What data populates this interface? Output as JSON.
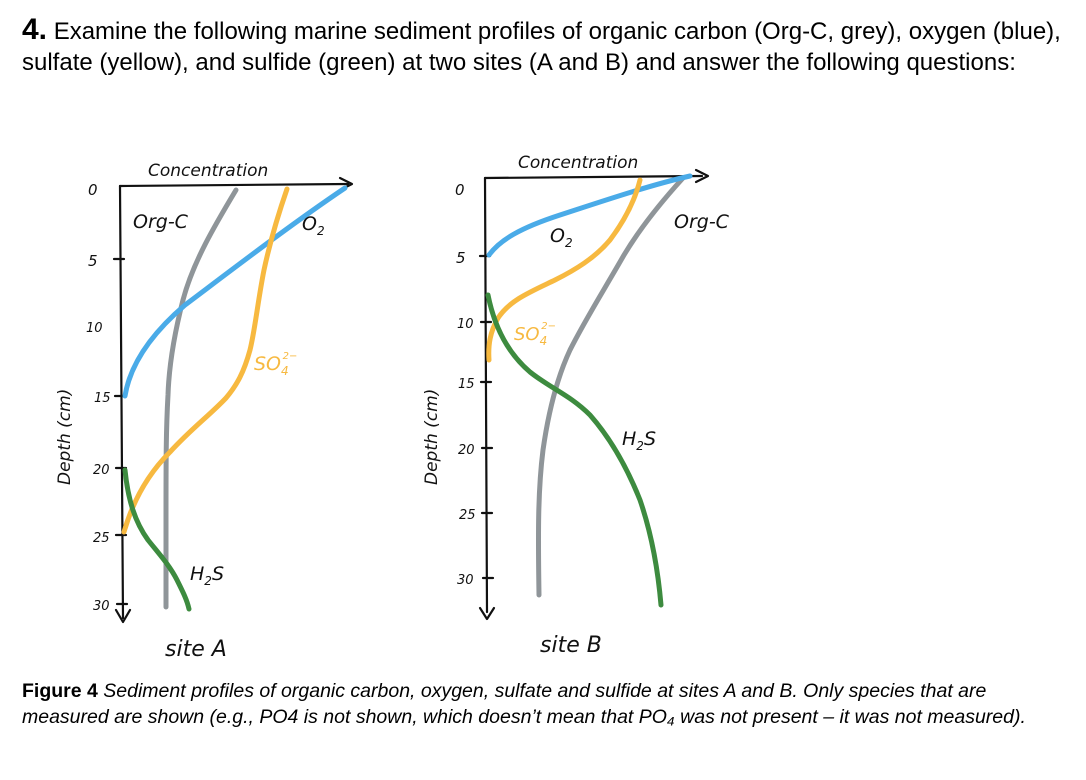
{
  "question": {
    "number": "4.",
    "text": "Examine the following marine sediment profiles of organic carbon (Org-C, grey), oxygen (blue), sulfate (yellow), and sulfide (green) at two sites (A and B) and answer the following questions:"
  },
  "colors": {
    "org_c": "#8f9599",
    "oxygen": "#4aabe8",
    "sulfate": "#f7b940",
    "sulfide": "#3d8b3f"
  },
  "figure": {
    "site_a": {
      "title": "site A",
      "x_axis_label": "Concentration",
      "y_axis_label": "Depth (cm)",
      "depth_ticks": [
        "0",
        "5",
        "10",
        "15",
        "20",
        "25",
        "30"
      ],
      "curve_labels": {
        "org_c": "Org-C",
        "oxygen": "O",
        "oxygen_sub": "2",
        "sulfate": "SO",
        "sulfate_sub": "4",
        "sulfate_sup": "2−",
        "sulfide": "H",
        "sulfide_sub": "2",
        "sulfide_tail": "S"
      }
    },
    "site_b": {
      "title": "site B",
      "x_axis_label": "Concentration",
      "y_axis_label": "Depth (cm)",
      "depth_ticks": [
        "0",
        "5",
        "10",
        "15",
        "20",
        "25",
        "30"
      ],
      "curve_labels": {
        "org_c": "Org-C",
        "oxygen": "O",
        "oxygen_sub": "2",
        "sulfate": "SO",
        "sulfate_sub": "4",
        "sulfate_sup": "2−",
        "sulfide": "H",
        "sulfide_sub": "2",
        "sulfide_tail": "S"
      }
    }
  },
  "caption": {
    "label": "Figure 4",
    "text": "Sediment profiles of organic carbon, oxygen, sulfate and sulfide at sites A and B. Only species that are measured are shown (e.g., PO4 is not shown, which doesn’t mean that PO₄ was not present – it was not measured)."
  }
}
